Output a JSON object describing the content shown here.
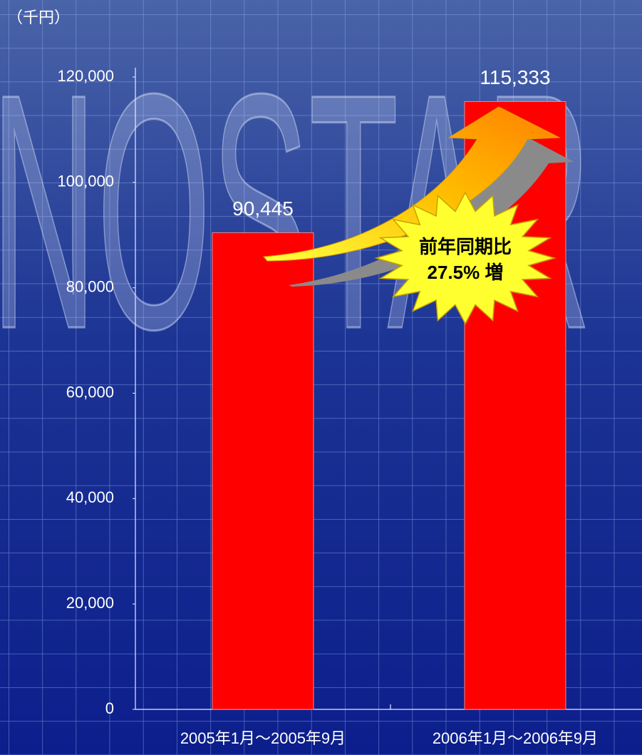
{
  "chart_data": {
    "type": "bar",
    "unit_label": "（千円）",
    "watermark": "INOSTAR",
    "categories": [
      "2005年1月～2005年9月",
      "2006年1月～2006年9月"
    ],
    "values": [
      90445,
      115333
    ],
    "value_labels": [
      "90,445",
      "115,333"
    ],
    "color": "#ff0000",
    "ylim": [
      0,
      120000
    ],
    "yticks": [
      0,
      {
        "value": 20000,
        "label": "20,000"
      },
      {
        "value": 40000,
        "label": "40,000"
      },
      {
        "value": 60000,
        "label": "60,000"
      },
      {
        "value": 80000,
        "label": "80,000"
      },
      {
        "value": 100000,
        "label": "100,000"
      },
      {
        "value": 120000,
        "label": "120,000"
      }
    ],
    "annotation": [
      "前年同期比",
      "27.5% 増"
    ]
  }
}
